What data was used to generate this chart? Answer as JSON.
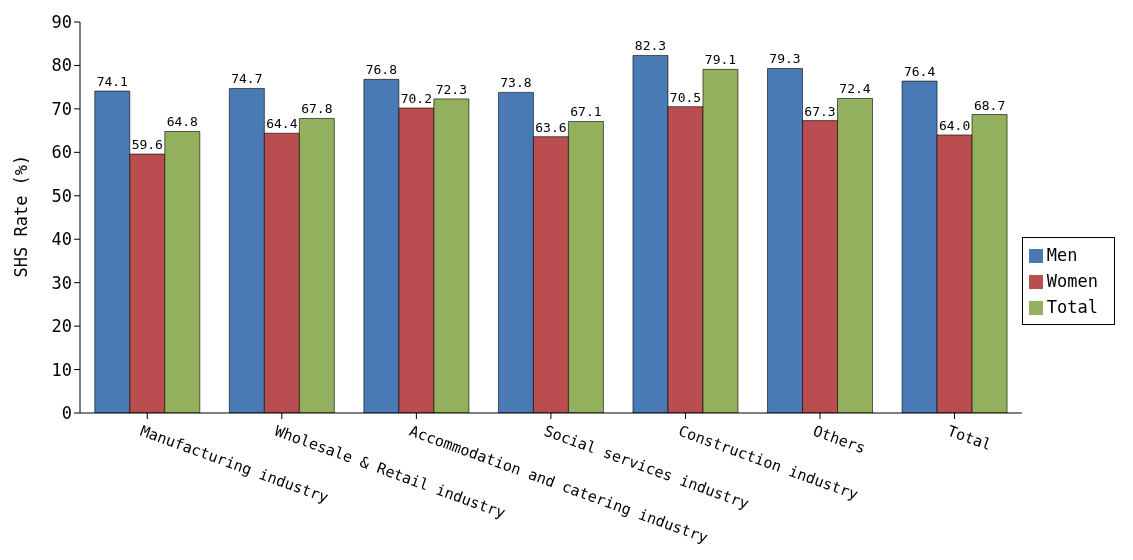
{
  "chart_data": {
    "type": "bar",
    "ylabel": "SHS Rate (%)",
    "categories": [
      "Manufacturing industry",
      "Wholesale & Retail industry",
      "Accommodation and catering industry",
      "Social services industry",
      "Construction industry",
      "Others",
      "Total"
    ],
    "series": [
      {
        "name": "Men",
        "color": "#4a7ab5",
        "values": [
          74.1,
          74.7,
          76.8,
          73.8,
          82.3,
          79.3,
          76.4
        ],
        "value_labels": [
          "74.1",
          "74.7",
          "76.8",
          "73.8",
          "82.3",
          "79.3",
          "76.4"
        ]
      },
      {
        "name": "Women",
        "color": "#b94d4f",
        "values": [
          59.6,
          64.4,
          70.2,
          63.6,
          70.5,
          67.3,
          64.0
        ],
        "value_labels": [
          "59.6",
          "64.4",
          "70.2",
          "63.6",
          "70.5",
          "67.3",
          "64.0"
        ]
      },
      {
        "name": "Total",
        "color": "#93b05f",
        "values": [
          64.8,
          67.8,
          72.3,
          67.1,
          79.1,
          72.4,
          68.7
        ],
        "value_labels": [
          "64.8",
          "67.8",
          "72.3",
          "67.1",
          "79.1",
          "72.4",
          "68.7"
        ]
      }
    ],
    "ylim": [
      0,
      90
    ],
    "yticks": [
      0,
      10,
      20,
      30,
      40,
      50,
      60,
      70,
      80,
      90
    ],
    "grid": false,
    "legend": "right"
  }
}
